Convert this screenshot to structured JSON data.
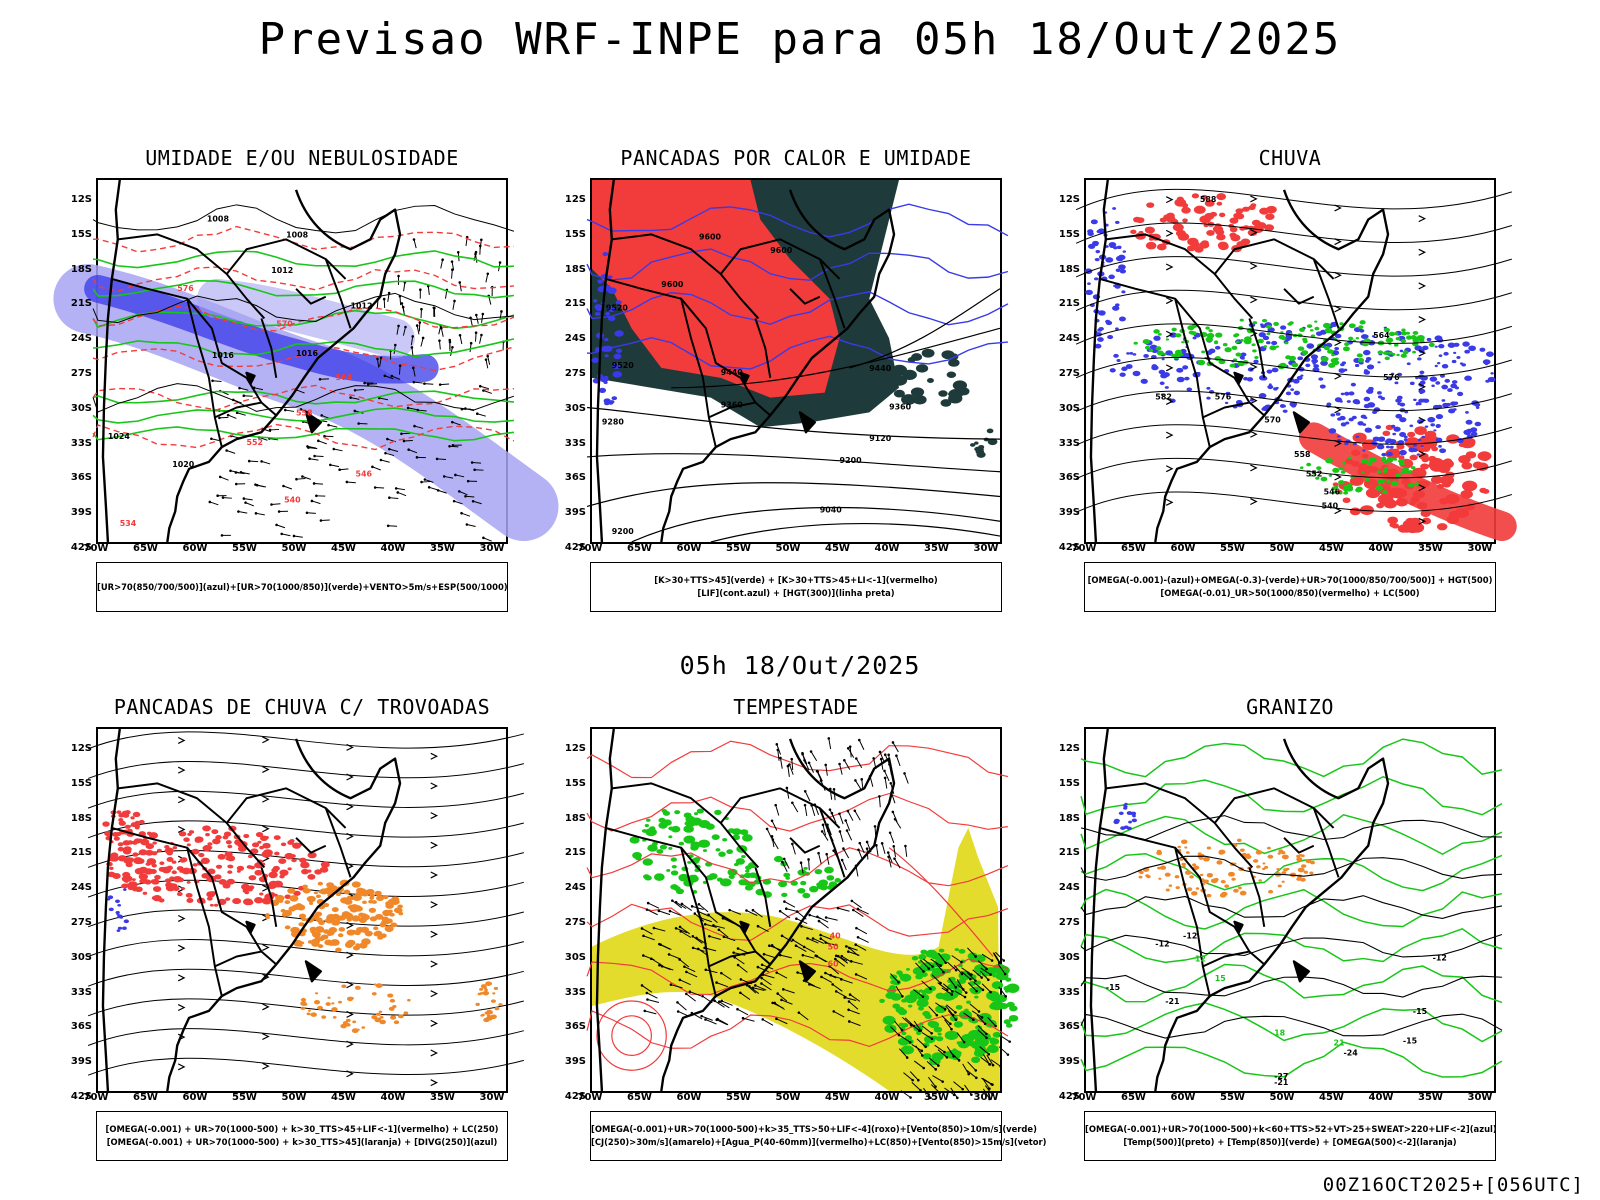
{
  "title": "Previsao WRF-INPE  para 05h 18/Out/2025",
  "subtitle": "05h 18/Out/2025",
  "footer": "00Z16OCT2025+[056UTC]",
  "axes": {
    "lat_labels": [
      "12S",
      "15S",
      "18S",
      "21S",
      "24S",
      "27S",
      "30S",
      "33S",
      "36S",
      "39S",
      "42S"
    ],
    "lon_labels": [
      "70W",
      "65W",
      "60W",
      "55W",
      "50W",
      "45W",
      "40W",
      "35W",
      "30W"
    ]
  },
  "colors": {
    "red": "#f23b3b",
    "green": "#17c617",
    "blue": "#3a3ae8",
    "lightblue": "#a7a3f2",
    "orange": "#f0882a",
    "yellow": "#e4dc2c",
    "darkteal": "#1f3a3a",
    "black": "#000000"
  },
  "panels": [
    {
      "id": "umidade",
      "title": "UMIDADE E/OU NEBULOSIDADE",
      "legend": [
        "[UR>70(850/700/500)](azul)+[UR>70(1000/850)](verde)+VENTO>5m/s+ESP(500/1000)"
      ],
      "contour_labels": [
        "1008",
        "1008",
        "1012",
        "1012",
        "1016",
        "1016",
        "1020",
        "1024",
        "576",
        "570",
        "564",
        "558",
        "552",
        "546",
        "540",
        "534"
      ]
    },
    {
      "id": "pancadas-calor",
      "title": "PANCADAS POR CALOR E UMIDADE",
      "legend": [
        "[K>30+TTS>45](verde) + [K>30+TTS>45+LI<-1](vermelho)",
        "[LIF](cont.azul) + [HGT(300)](linha preta)"
      ],
      "contour_labels": [
        "9600",
        "9600",
        "9600",
        "9520",
        "9520",
        "9440",
        "9440",
        "9360",
        "9360",
        "9280",
        "9200",
        "9120",
        "9040",
        "9200"
      ]
    },
    {
      "id": "chuva",
      "title": "CHUVA",
      "legend": [
        "[OMEGA(-0.001)-(azul)+OMEGA(-0.3)-(verde)+UR>70(1000/850/700/500)] + HGT(500)",
        "[OMEGA(-0.01)_UR>50(1000/850)(vermelho) + LC(500)"
      ],
      "contour_labels": [
        "588",
        "582",
        "576",
        "570",
        "576",
        "564",
        "558",
        "552",
        "546",
        "540"
      ]
    },
    {
      "id": "trovoadas",
      "title": "PANCADAS DE CHUVA C/ TROVOADAS",
      "legend": [
        "[OMEGA(-0.001) + UR>70(1000-500) + k>30_TTS>45+LIF<-1](vermelho) + LC(250)",
        "[OMEGA(-0.001) + UR>70(1000-500) + k>30_TTS>45](laranja) + [DIVG(250)](azul)"
      ],
      "contour_labels": []
    },
    {
      "id": "tempestade",
      "title": "TEMPESTADE",
      "legend": [
        "[OMEGA(-0.001)+UR>70(1000-500)+k>35_TTS>50+LIF<-4](roxo)+[Vento(850)>10m/s](verde)",
        "[CJ(250)>30m/s](amarelo)+[Agua_P(40-60mm)](vermelho)+LC(850)+[Vento(850)>15m/s](vetor)"
      ],
      "contour_labels": [
        "40",
        "50",
        "60"
      ]
    },
    {
      "id": "granizo",
      "title": "GRANIZO",
      "legend": [
        "[OMEGA(-0.001)+UR>70(1000-500)+k<60+TTS>52+VT>25+SWEAT>220+LIF<-2](azul)",
        "[Temp(500)](preto) + [Temp(850)](verde) + [OMEGA(500)<-2](laranja)"
      ],
      "contour_labels": [
        "-12",
        "-12",
        "-12",
        "-15",
        "-15",
        "-15",
        "-21",
        "-21",
        "-24",
        "-27",
        "12",
        "15",
        "18",
        "21"
      ]
    }
  ]
}
